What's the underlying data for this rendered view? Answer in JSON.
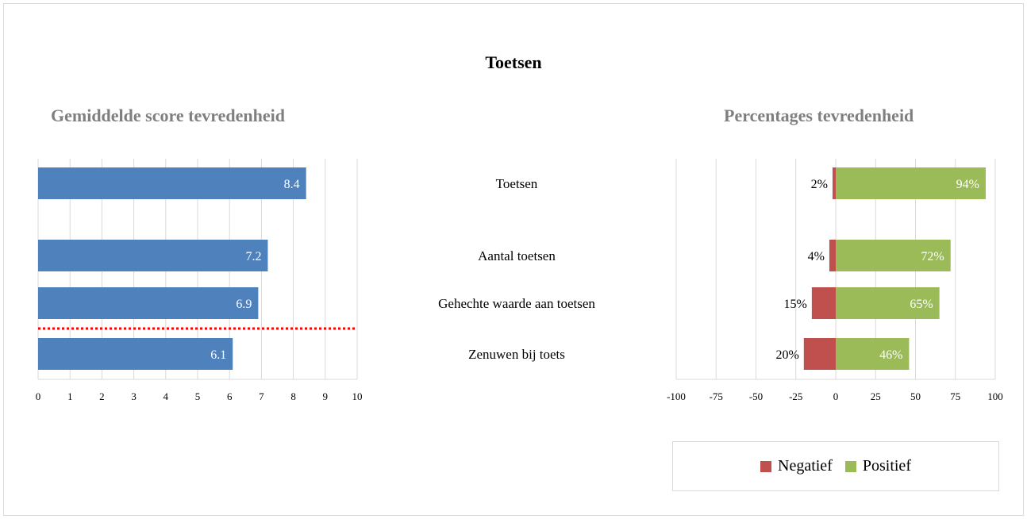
{
  "title": "Toetsen",
  "colors": {
    "score_bar": "#4f81bd",
    "negatief": "#c0504d",
    "positief": "#9bbb59",
    "subtitle": "#7f7f7f",
    "grid": "#d9d9d9",
    "reference_line": "#ff0000"
  },
  "chart_data": [
    {
      "type": "bar",
      "orientation": "horizontal",
      "title": "Gemiddelde score tevredenheid",
      "categories": [
        "Toetsen",
        "Aantal toetsen",
        "Gehechte waarde aan toetsen",
        "Zenuwen bij toets"
      ],
      "values": [
        8.4,
        7.2,
        6.9,
        6.1
      ],
      "value_labels": [
        "8.4",
        "7.2",
        "6.9",
        "6.1"
      ],
      "xlim": [
        0,
        10
      ],
      "xticks": [
        "0",
        "1",
        "2",
        "3",
        "4",
        "5",
        "6",
        "7",
        "8",
        "9",
        "10"
      ],
      "grid": true,
      "reference_line": "dotted red horizontal divider between 'Gehechte waarde aan toetsen' and 'Zenuwen bij toets'"
    },
    {
      "type": "bar",
      "orientation": "horizontal",
      "stacked": "diverging",
      "title": "Percentages tevredenheid",
      "categories": [
        "Toetsen",
        "Aantal toetsen",
        "Gehechte waarde aan toetsen",
        "Zenuwen bij toets"
      ],
      "series": [
        {
          "name": "Negatief",
          "values": [
            -2,
            -4,
            -15,
            -20
          ],
          "labels": [
            "2%",
            "4%",
            "15%",
            "20%"
          ]
        },
        {
          "name": "Positief",
          "values": [
            94,
            72,
            65,
            46
          ],
          "labels": [
            "94%",
            "72%",
            "65%",
            "46%"
          ]
        }
      ],
      "xlim": [
        -100,
        100
      ],
      "xticks": [
        "-100",
        "-75",
        "-50",
        "-25",
        "0",
        "25",
        "50",
        "75",
        "100"
      ],
      "grid": true,
      "legend": "bottom-right"
    }
  ]
}
